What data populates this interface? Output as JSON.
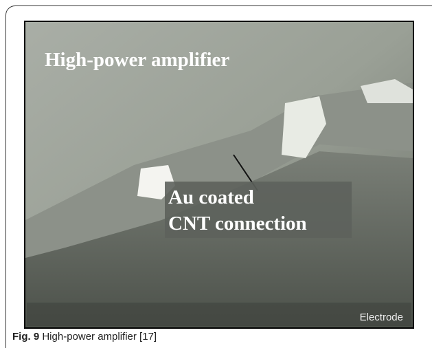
{
  "figure": {
    "label": "Fig. 9",
    "caption": "High-power amplifier [17]",
    "image_labels": {
      "title": "High-power amplifier",
      "annotation_line1": "Au coated",
      "annotation_line2": "CNT connection",
      "corner": "Electrode"
    }
  }
}
